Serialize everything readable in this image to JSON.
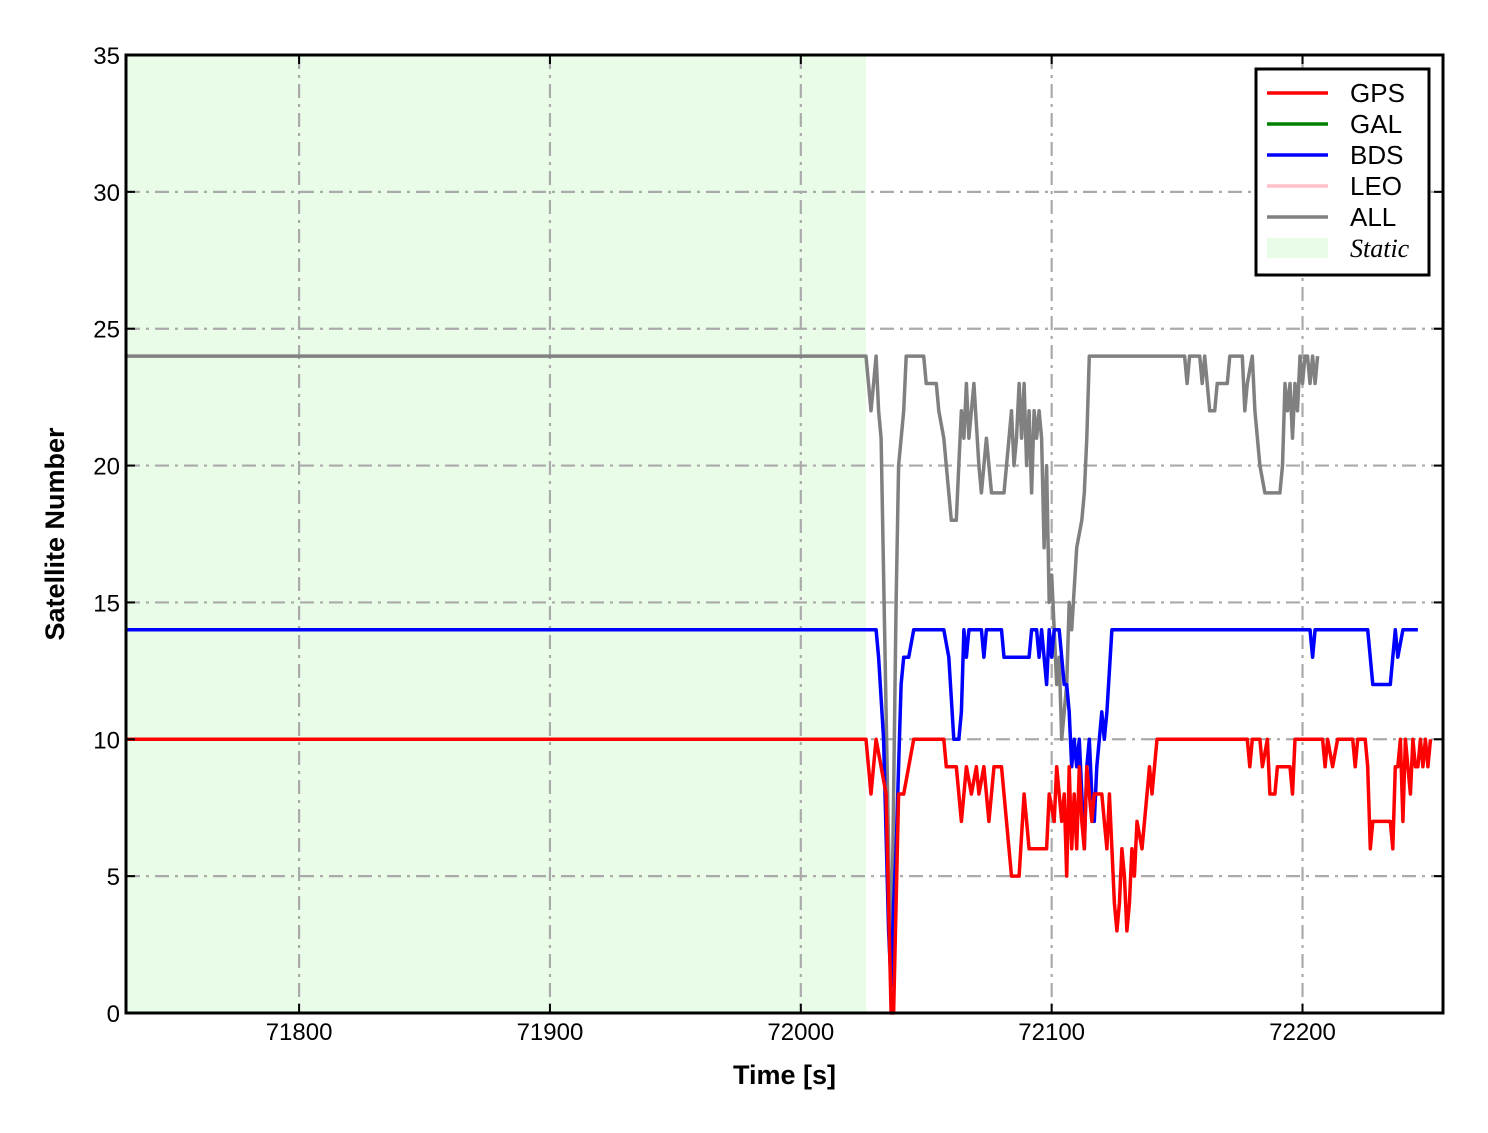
{
  "chart_data": {
    "type": "line",
    "title": "",
    "xlabel": "Time [s]",
    "ylabel": "Satellite Number",
    "xlim": [
      71731,
      72256
    ],
    "ylim": [
      0,
      35
    ],
    "xticks": [
      71800,
      71900,
      72000,
      72100,
      72200
    ],
    "xtick_labels": [
      "71800",
      "71900",
      "72000",
      "72100",
      "72200"
    ],
    "yticks": [
      0,
      5,
      10,
      15,
      20,
      25,
      30,
      35
    ],
    "ytick_labels": [
      "0",
      "5",
      "10",
      "15",
      "20",
      "25",
      "30",
      "35"
    ],
    "grid": true,
    "legend_position": "top-right",
    "shaded_region": {
      "label": "Static",
      "x_start": 71731,
      "x_end": 72026,
      "color": "#e8fce8"
    },
    "series": [
      {
        "name": "GPS",
        "color": "#ff0000",
        "points": [
          [
            71731,
            10
          ],
          [
            72026,
            10
          ],
          [
            72028,
            8
          ],
          [
            72030,
            10
          ],
          [
            72032,
            9
          ],
          [
            72034,
            8
          ],
          [
            72035,
            4
          ],
          [
            72036,
            0
          ],
          [
            72037,
            0
          ],
          [
            72039,
            8
          ],
          [
            72041,
            8
          ],
          [
            72043,
            9
          ],
          [
            72045,
            10
          ],
          [
            72057,
            10
          ],
          [
            72058,
            9
          ],
          [
            72062,
            9
          ],
          [
            72064,
            7
          ],
          [
            72066,
            9
          ],
          [
            72068,
            8
          ],
          [
            72070,
            9
          ],
          [
            72071,
            8
          ],
          [
            72073,
            9
          ],
          [
            72075,
            7
          ],
          [
            72077,
            9
          ],
          [
            72080,
            9
          ],
          [
            72082,
            7
          ],
          [
            72084,
            5
          ],
          [
            72087,
            5
          ],
          [
            72089,
            8
          ],
          [
            72091,
            6
          ],
          [
            72098,
            6
          ],
          [
            72099,
            8
          ],
          [
            72101,
            7
          ],
          [
            72102,
            9
          ],
          [
            72104,
            7
          ],
          [
            72105,
            8
          ],
          [
            72106,
            5
          ],
          [
            72107,
            9
          ],
          [
            72108,
            6
          ],
          [
            72109,
            8
          ],
          [
            72110,
            6
          ],
          [
            72111,
            9
          ],
          [
            72112,
            7
          ],
          [
            72113,
            6
          ],
          [
            72114,
            9
          ],
          [
            72116,
            7
          ],
          [
            72117,
            8
          ],
          [
            72120,
            8
          ],
          [
            72121,
            7
          ],
          [
            72122,
            6
          ],
          [
            72123,
            8
          ],
          [
            72124,
            6
          ],
          [
            72125,
            4
          ],
          [
            72126,
            3
          ],
          [
            72127,
            4
          ],
          [
            72128,
            6
          ],
          [
            72129,
            5
          ],
          [
            72130,
            3
          ],
          [
            72131,
            4
          ],
          [
            72132,
            6
          ],
          [
            72133,
            5
          ],
          [
            72134,
            7
          ],
          [
            72136,
            6
          ],
          [
            72138,
            8
          ],
          [
            72139,
            9
          ],
          [
            72140,
            8
          ],
          [
            72142,
            10
          ],
          [
            72178,
            10
          ],
          [
            72179,
            9
          ],
          [
            72180,
            10
          ],
          [
            72183,
            10
          ],
          [
            72184,
            9
          ],
          [
            72186,
            10
          ],
          [
            72187,
            8
          ],
          [
            72189,
            8
          ],
          [
            72190,
            9
          ],
          [
            72195,
            9
          ],
          [
            72196,
            8
          ],
          [
            72197,
            10
          ],
          [
            72208,
            10
          ],
          [
            72209,
            9
          ],
          [
            72210,
            10
          ],
          [
            72212,
            9
          ],
          [
            72214,
            10
          ],
          [
            72220,
            10
          ],
          [
            72221,
            9
          ],
          [
            72222,
            10
          ],
          [
            72225,
            10
          ],
          [
            72226,
            9
          ],
          [
            72227,
            6
          ],
          [
            72228,
            7
          ],
          [
            72235,
            7
          ],
          [
            72236,
            6
          ],
          [
            72237,
            9
          ],
          [
            72238,
            9
          ],
          [
            72239,
            10
          ],
          [
            72240,
            7
          ],
          [
            72241,
            10
          ],
          [
            72242,
            9
          ],
          [
            72243,
            8
          ],
          [
            72244,
            10
          ],
          [
            72245,
            9
          ],
          [
            72246,
            9
          ],
          [
            72247,
            10
          ],
          [
            72248,
            9
          ],
          [
            72249,
            10
          ],
          [
            72250,
            9
          ],
          [
            72251,
            10
          ]
        ]
      },
      {
        "name": "GAL",
        "color": "#008000",
        "points": []
      },
      {
        "name": "BDS",
        "color": "#0000ff",
        "points": [
          [
            71731,
            14
          ],
          [
            72030,
            14
          ],
          [
            72031,
            13
          ],
          [
            72033,
            10
          ],
          [
            72035,
            3
          ],
          [
            72036,
            1
          ],
          [
            72037,
            4
          ],
          [
            72038,
            6
          ],
          [
            72040,
            12
          ],
          [
            72041,
            13
          ],
          [
            72043,
            13
          ],
          [
            72045,
            14
          ],
          [
            72057,
            14
          ],
          [
            72059,
            13
          ],
          [
            72061,
            10
          ],
          [
            72063,
            10
          ],
          [
            72064,
            11
          ],
          [
            72065,
            14
          ],
          [
            72066,
            13
          ],
          [
            72067,
            14
          ],
          [
            72072,
            14
          ],
          [
            72073,
            13
          ],
          [
            72074,
            14
          ],
          [
            72080,
            14
          ],
          [
            72081,
            13
          ],
          [
            72091,
            13
          ],
          [
            72092,
            14
          ],
          [
            72094,
            14
          ],
          [
            72095,
            13
          ],
          [
            72096,
            14
          ],
          [
            72097,
            13
          ],
          [
            72098,
            12
          ],
          [
            72099,
            14
          ],
          [
            72100,
            13
          ],
          [
            72101,
            14
          ],
          [
            72103,
            14
          ],
          [
            72104,
            13
          ],
          [
            72105,
            12
          ],
          [
            72106,
            12
          ],
          [
            72107,
            11
          ],
          [
            72108,
            9
          ],
          [
            72109,
            10
          ],
          [
            72110,
            9
          ],
          [
            72111,
            10
          ],
          [
            72112,
            8
          ],
          [
            72113,
            6
          ],
          [
            72114,
            9
          ],
          [
            72115,
            10
          ],
          [
            72116,
            8
          ],
          [
            72117,
            7
          ],
          [
            72118,
            9
          ],
          [
            72119,
            10
          ],
          [
            72120,
            11
          ],
          [
            72121,
            10
          ],
          [
            72122,
            11
          ],
          [
            72124,
            14
          ],
          [
            72203,
            14
          ],
          [
            72204,
            13
          ],
          [
            72205,
            14
          ],
          [
            72226,
            14
          ],
          [
            72228,
            12
          ],
          [
            72235,
            12
          ],
          [
            72236,
            13
          ],
          [
            72237,
            14
          ],
          [
            72238,
            13
          ],
          [
            72240,
            14
          ],
          [
            72246,
            14
          ]
        ]
      },
      {
        "name": "LEO",
        "color": "#ffc0cb",
        "points": []
      },
      {
        "name": "ALL",
        "color": "#808080",
        "points": [
          [
            71731,
            24
          ],
          [
            72026,
            24
          ],
          [
            72028,
            22
          ],
          [
            72029,
            23
          ],
          [
            72030,
            24
          ],
          [
            72031,
            22
          ],
          [
            72032,
            21
          ],
          [
            72033,
            16
          ],
          [
            72035,
            6
          ],
          [
            72036,
            1
          ],
          [
            72037,
            8
          ],
          [
            72038,
            15
          ],
          [
            72039,
            20
          ],
          [
            72041,
            22
          ],
          [
            72042,
            24
          ],
          [
            72049,
            24
          ],
          [
            72050,
            23
          ],
          [
            72054,
            23
          ],
          [
            72055,
            22
          ],
          [
            72057,
            21
          ],
          [
            72058,
            20
          ],
          [
            72060,
            18
          ],
          [
            72062,
            18
          ],
          [
            72063,
            20
          ],
          [
            72064,
            22
          ],
          [
            72065,
            21
          ],
          [
            72066,
            23
          ],
          [
            72067,
            21
          ],
          [
            72069,
            23
          ],
          [
            72071,
            20
          ],
          [
            72072,
            19
          ],
          [
            72074,
            21
          ],
          [
            72076,
            19
          ],
          [
            72081,
            19
          ],
          [
            72082,
            20
          ],
          [
            72083,
            21
          ],
          [
            72084,
            22
          ],
          [
            72085,
            20
          ],
          [
            72086,
            21
          ],
          [
            72087,
            23
          ],
          [
            72088,
            21
          ],
          [
            72089,
            23
          ],
          [
            72090,
            20
          ],
          [
            72091,
            22
          ],
          [
            72092,
            19
          ],
          [
            72093,
            22
          ],
          [
            72094,
            21
          ],
          [
            72095,
            22
          ],
          [
            72096,
            21
          ],
          [
            72097,
            17
          ],
          [
            72098,
            20
          ],
          [
            72099,
            15
          ],
          [
            72100,
            16
          ],
          [
            72101,
            14
          ],
          [
            72102,
            12
          ],
          [
            72103,
            13
          ],
          [
            72104,
            10
          ],
          [
            72105,
            11
          ],
          [
            72106,
            12
          ],
          [
            72107,
            15
          ],
          [
            72108,
            14
          ],
          [
            72110,
            17
          ],
          [
            72112,
            18
          ],
          [
            72113,
            19
          ],
          [
            72114,
            21
          ],
          [
            72115,
            24
          ],
          [
            72153,
            24
          ],
          [
            72154,
            23
          ],
          [
            72155,
            24
          ],
          [
            72159,
            24
          ],
          [
            72160,
            23
          ],
          [
            72161,
            24
          ],
          [
            72163,
            22
          ],
          [
            72165,
            22
          ],
          [
            72166,
            23
          ],
          [
            72170,
            23
          ],
          [
            72171,
            24
          ],
          [
            72176,
            24
          ],
          [
            72177,
            22
          ],
          [
            72178,
            23
          ],
          [
            72180,
            24
          ],
          [
            72181,
            22
          ],
          [
            72183,
            20
          ],
          [
            72185,
            19
          ],
          [
            72191,
            19
          ],
          [
            72192,
            20
          ],
          [
            72193,
            23
          ],
          [
            72194,
            22
          ],
          [
            72195,
            23
          ],
          [
            72196,
            21
          ],
          [
            72197,
            23
          ],
          [
            72198,
            22
          ],
          [
            72199,
            24
          ],
          [
            72200,
            23
          ],
          [
            72201,
            24
          ],
          [
            72202,
            24
          ],
          [
            72203,
            23
          ],
          [
            72204,
            24
          ],
          [
            72205,
            23
          ],
          [
            72206,
            24
          ]
        ]
      }
    ]
  }
}
